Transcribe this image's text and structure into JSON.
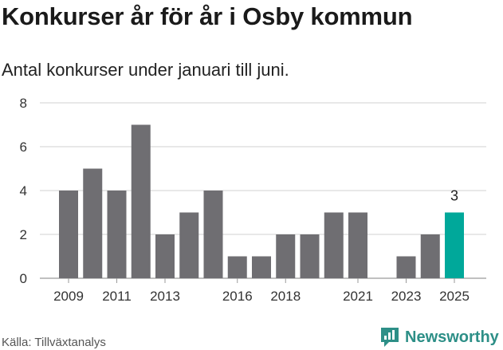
{
  "title": "Konkurser år för år i Osby kommun",
  "subtitle": "Antal konkurser under januari till juni.",
  "source": "Källa: Tillväxtanalys",
  "brand": "Newsworthy",
  "colors": {
    "bar": "#6f6e72",
    "highlight": "#00a89a",
    "grid": "#d9d9d9",
    "brand": "#2d8f87"
  },
  "chart_data": {
    "type": "bar",
    "categories": [
      "2009",
      "2010",
      "2011",
      "2012",
      "2013",
      "2014",
      "2015",
      "2016",
      "2017",
      "2018",
      "2019",
      "2020",
      "2021",
      "2022",
      "2023",
      "2024",
      "2025"
    ],
    "values": [
      4,
      5,
      4,
      7,
      2,
      3,
      4,
      1,
      1,
      2,
      2,
      3,
      3,
      0,
      1,
      2,
      3
    ],
    "x_tick_labels": [
      "2009",
      "2011",
      "2013",
      "2016",
      "2018",
      "2021",
      "2023",
      "2025"
    ],
    "y_ticks": [
      0,
      2,
      4,
      6,
      8
    ],
    "ylim": [
      0,
      8
    ],
    "highlight_category": "2025",
    "data_labels": [
      {
        "category": "2025",
        "text": "3"
      }
    ],
    "grid": true,
    "title": "Konkurser år för år i Osby kommun",
    "xlabel": "",
    "ylabel": ""
  }
}
